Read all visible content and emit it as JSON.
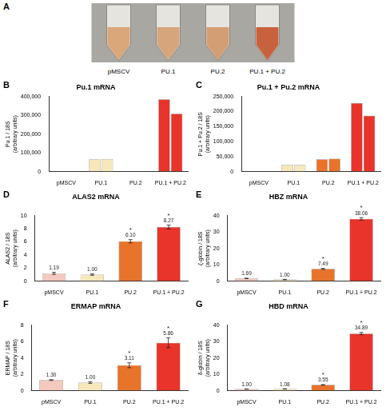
{
  "image_panel": {
    "panel": "A",
    "labels": [
      "pMSCV",
      "PU.1",
      "PU.2",
      "PU.1 + PU.2"
    ]
  },
  "chart_data": [
    {
      "panel": "B",
      "type": "bar",
      "title": "Pu.1 mRNA",
      "y_label": "Pu.1 / 18S (arbitrary units)",
      "categories": [
        "pMSCV",
        "PU.1",
        "PU.2",
        "PU.1 + PU.2"
      ],
      "series": [
        {
          "values": [
            0,
            65000,
            0,
            385000
          ],
          "colors": [
            "#f4c9bf",
            "#f6e8bb",
            "#e8732b",
            "#e8342a"
          ]
        },
        {
          "values": [
            0,
            66000,
            0,
            308000
          ],
          "colors": [
            "#f4c9bf",
            "#f6e8bb",
            "#e8732b",
            "#e8342a"
          ]
        }
      ],
      "ylim": [
        0,
        400000
      ],
      "yticks": [
        0,
        {
          "value": 100000,
          "label": "100,000"
        },
        {
          "value": 200000,
          "label": "200,000"
        },
        {
          "value": 300000,
          "label": "300,000"
        },
        {
          "value": 400000,
          "label": "400,000"
        }
      ],
      "grid": false,
      "data_labels": false
    },
    {
      "panel": "C",
      "type": "bar",
      "title": "Pu.1 + Pu.2 mRNA",
      "y_label": "Pu.1 + Pu.2 / 18S (arbitrary units)",
      "categories": [
        "pMSCV",
        "PU.1",
        "PU.2",
        "PU.1 + PU.2"
      ],
      "series": [
        {
          "values": [
            0,
            23000,
            41000,
            228000
          ],
          "colors": [
            "#f4c9bf",
            "#f6e8bb",
            "#e8732b",
            "#e8342a"
          ]
        },
        {
          "values": [
            0,
            22000,
            43000,
            186000
          ],
          "colors": [
            "#f4c9bf",
            "#f6e8bb",
            "#e8732b",
            "#e8342a"
          ]
        }
      ],
      "ylim": [
        0,
        250000
      ],
      "yticks": [
        0,
        {
          "value": 50000,
          "label": "50,000"
        },
        {
          "value": 100000,
          "label": "100,000"
        },
        {
          "value": 150000,
          "label": "150,000"
        },
        {
          "value": 200000,
          "label": "200,000"
        },
        {
          "value": 250000,
          "label": "250,000"
        }
      ],
      "grid": false,
      "data_labels": false
    },
    {
      "panel": "D",
      "type": "bar",
      "title": "ALAS2 mRNA",
      "y_label": "ALAS2 / 18S (arbitrary units)",
      "categories": [
        "pMSCV",
        "PU.1",
        "PU.2",
        "PU.1 + PU.2"
      ],
      "series": [
        {
          "values": [
            1.19,
            1.0,
            6.1,
            8.27
          ],
          "value_labels": [
            "1.19",
            "1.00",
            "6.10",
            "8.27"
          ],
          "errors": [
            0.15,
            0.1,
            0.25,
            0.3
          ],
          "significance": [
            null,
            null,
            "*",
            "*"
          ],
          "colors": [
            "#f4c9bf",
            "#f6e8bb",
            "#e8732b",
            "#e8342a"
          ]
        }
      ],
      "ylim": [
        0,
        10
      ],
      "yticks": [
        0,
        2,
        4,
        6,
        8,
        10
      ],
      "grid": false,
      "data_labels": true
    },
    {
      "panel": "E",
      "type": "bar",
      "title": "HBZ mRNA",
      "y_label": "ζ-globin / 18S (arbitrary units)",
      "categories": [
        "pMSCV",
        "PU.1",
        "PU.2",
        "PU.1 + PU.2"
      ],
      "series": [
        {
          "values": [
            1.69,
            1.0,
            7.49,
            38.06
          ],
          "value_labels": [
            "1.69",
            "1.00",
            "7.49",
            "38.06"
          ],
          "errors": [
            0.1,
            0.1,
            0.3,
            0.8
          ],
          "significance": [
            null,
            null,
            "*",
            "*"
          ],
          "colors": [
            "#f4c9bf",
            "#f6e8bb",
            "#e8732b",
            "#e8342a"
          ]
        }
      ],
      "ylim": [
        0,
        40
      ],
      "yticks": [
        0,
        10,
        20,
        30,
        40
      ],
      "grid": false,
      "data_labels": true
    },
    {
      "panel": "F",
      "type": "bar",
      "title": "ERMAP mRNA",
      "y_label": "ERMAP / 18S (arbitrary units)",
      "categories": [
        "pMSCV",
        "PU.1",
        "PU.2",
        "PU.1 + PU.2"
      ],
      "series": [
        {
          "values": [
            1.3,
            1.0,
            3.11,
            5.86
          ],
          "value_labels": [
            "1.30",
            "1.00",
            "3.11",
            "5.86"
          ],
          "errors": [
            0.05,
            0.1,
            0.3,
            0.6
          ],
          "significance": [
            null,
            null,
            "*",
            "*"
          ],
          "colors": [
            "#f4c9bf",
            "#f6e8bb",
            "#e8732b",
            "#e8342a"
          ]
        }
      ],
      "ylim": [
        0,
        8
      ],
      "yticks": [
        0,
        2,
        4,
        6,
        8
      ],
      "grid": false,
      "data_labels": true
    },
    {
      "panel": "G",
      "type": "bar",
      "title": "HBD mRNA",
      "y_label": "δ-globin / 18S (arbitrary units)",
      "categories": [
        "pMSCV",
        "PU.1",
        "PU.2",
        "PU.1 + PU.2"
      ],
      "series": [
        {
          "values": [
            1.0,
            1.08,
            3.55,
            34.89
          ],
          "value_labels": [
            "1.00",
            "1.08",
            "3.55",
            "34.89"
          ],
          "errors": [
            0.05,
            0.1,
            0.2,
            0.7
          ],
          "significance": [
            null,
            null,
            "*",
            "*"
          ],
          "colors": [
            "#f4c9bf",
            "#f6e8bb",
            "#e8732b",
            "#e8342a"
          ]
        }
      ],
      "ylim": [
        0,
        40
      ],
      "yticks": [
        0,
        10,
        20,
        30,
        40
      ],
      "grid": false,
      "data_labels": true
    }
  ]
}
